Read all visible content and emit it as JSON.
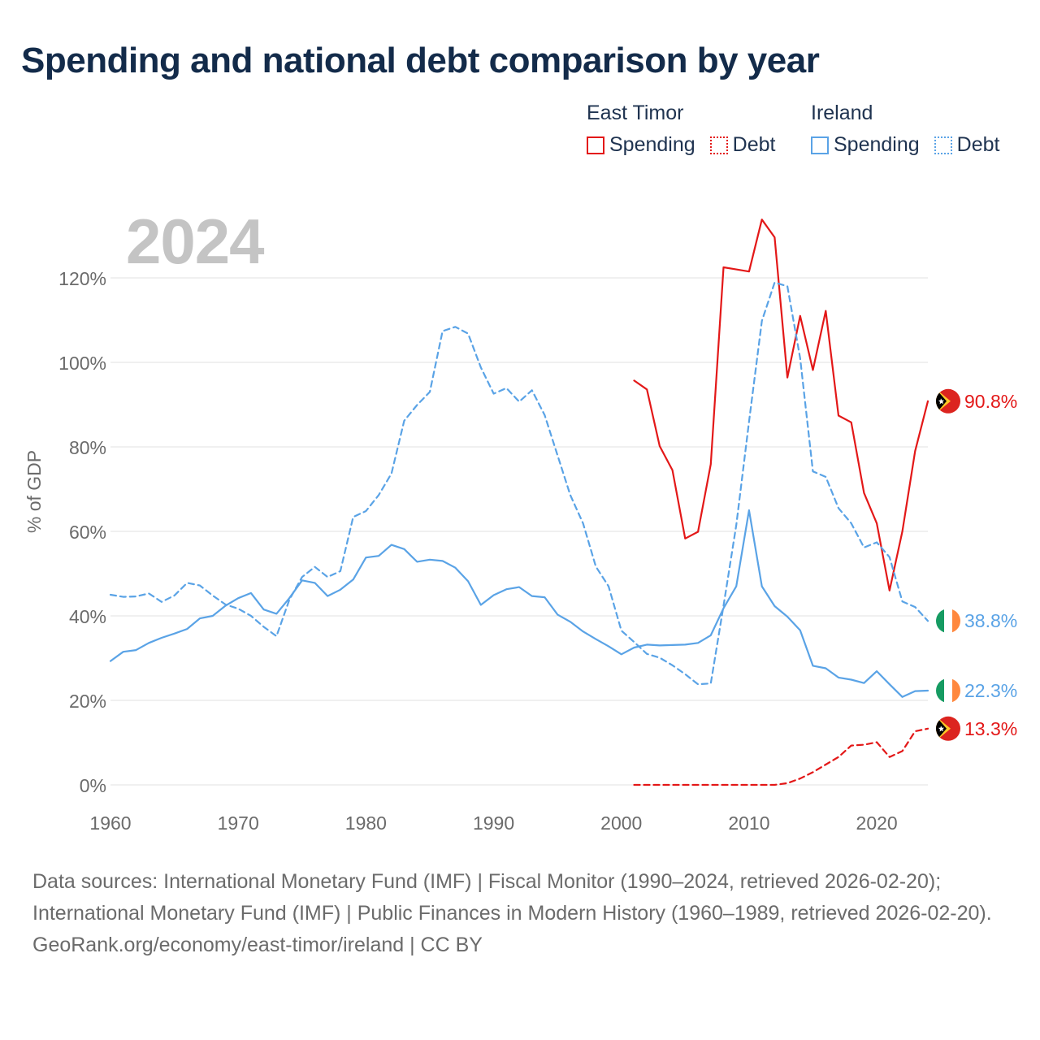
{
  "title": "Spending and national debt comparison by year",
  "year_label": "2024",
  "legend": {
    "groups": [
      {
        "name": "East Timor",
        "color": "#e31818",
        "items": [
          {
            "label": "Spending",
            "style": "solid"
          },
          {
            "label": "Debt",
            "style": "dotted"
          }
        ]
      },
      {
        "name": "Ireland",
        "color": "#5aa3e6",
        "items": [
          {
            "label": "Spending",
            "style": "solid"
          },
          {
            "label": "Debt",
            "style": "dotted"
          }
        ]
      }
    ]
  },
  "footer": {
    "sources": "Data sources: International Monetary Fund (IMF) | Fiscal Monitor (1990–2024, retrieved 2026-02-20); International Monetary Fund (IMF) | Public Finances in Modern History (1960–1989, retrieved 2026-02-20).",
    "credit": "GeoRank.org/economy/east-timor/ireland | CC BY"
  },
  "colors": {
    "east_timor": "#e31818",
    "ireland": "#5aa3e6",
    "grid": "#e6e6e6",
    "axis_text": "#6b6b6b"
  },
  "chart_data": {
    "type": "line",
    "title": "Spending and national debt comparison by year",
    "xlabel": "",
    "ylabel": "% of GDP",
    "xlim": [
      1960,
      2024
    ],
    "ylim": [
      0,
      130
    ],
    "x_ticks": [
      1960,
      1970,
      1980,
      1990,
      2000,
      2010,
      2020
    ],
    "y_ticks": [
      0,
      20,
      40,
      60,
      80,
      100,
      120
    ],
    "y_tick_labels": [
      "0%",
      "20%",
      "40%",
      "60%",
      "80%",
      "100%",
      "120%"
    ],
    "grid": true,
    "series": [
      {
        "name": "East Timor Spending",
        "country": "East Timor",
        "measure": "Spending",
        "color": "#e31818",
        "style": "solid",
        "end_label": "90.8%",
        "start_year": 2001,
        "values": [
          95.7,
          93.6,
          80.2,
          74.5,
          58.3,
          59.9,
          75.9,
          122.5,
          122.0,
          121.5,
          133.8,
          129.6,
          96.4,
          111.0,
          98.2,
          112.2,
          87.4,
          85.8,
          69.1,
          61.9,
          46.0,
          60.0,
          79.0,
          90.8
        ]
      },
      {
        "name": "East Timor Debt",
        "country": "East Timor",
        "measure": "Debt",
        "color": "#e31818",
        "style": "dashed",
        "end_label": "13.3%",
        "start_year": 2001,
        "values": [
          0.0,
          0.0,
          0.0,
          0.0,
          0.0,
          0.0,
          0.0,
          0.0,
          0.0,
          0.0,
          0.0,
          0.0,
          0.4,
          1.5,
          3.0,
          4.8,
          6.6,
          9.3,
          9.5,
          10.1,
          6.6,
          8.0,
          12.7,
          13.3
        ]
      },
      {
        "name": "Ireland Spending",
        "country": "Ireland",
        "measure": "Spending",
        "color": "#5aa3e6",
        "style": "solid",
        "end_label": "22.3%",
        "start_year": 1960,
        "values": [
          29.3,
          31.5,
          31.9,
          33.6,
          34.8,
          35.8,
          36.9,
          39.4,
          40.0,
          42.4,
          44.2,
          45.4,
          41.5,
          40.5,
          44.2,
          48.4,
          47.8,
          44.7,
          46.2,
          48.6,
          53.8,
          54.2,
          56.8,
          55.8,
          52.8,
          53.3,
          53.0,
          51.4,
          48.2,
          42.6,
          44.9,
          46.3,
          46.8,
          44.7,
          44.4,
          40.3,
          38.6,
          36.3,
          34.5,
          32.8,
          30.9,
          32.5,
          33.2,
          33.0,
          33.1,
          33.2,
          33.6,
          35.4,
          41.8,
          47.0,
          65.0,
          47.0,
          42.3,
          39.8,
          36.6,
          28.2,
          27.6,
          25.4,
          24.9,
          24.1,
          26.9,
          23.8,
          20.8,
          22.2,
          22.3
        ]
      },
      {
        "name": "Ireland Debt",
        "country": "Ireland",
        "measure": "Debt",
        "color": "#5aa3e6",
        "style": "dashed",
        "end_label": "38.8%",
        "start_year": 1960,
        "values": [
          45.0,
          44.5,
          44.6,
          45.3,
          43.3,
          44.8,
          47.8,
          47.2,
          44.8,
          42.7,
          41.7,
          40.0,
          37.4,
          35.2,
          43.8,
          49.2,
          51.6,
          49.2,
          50.6,
          63.4,
          64.8,
          68.6,
          73.7,
          86.2,
          89.9,
          93.0,
          107.4,
          108.4,
          106.8,
          98.8,
          92.6,
          93.9,
          90.7,
          93.4,
          87.5,
          78.0,
          68.6,
          61.9,
          51.7,
          47.0,
          36.5,
          33.8,
          31.0,
          30.1,
          28.3,
          26.2,
          23.8,
          24.0,
          42.4,
          61.5,
          86.0,
          109.8,
          118.9,
          118.0,
          101.0,
          74.2,
          72.9,
          65.5,
          61.9,
          56.2,
          57.4,
          53.9,
          43.4,
          42.1,
          38.8
        ]
      }
    ]
  }
}
